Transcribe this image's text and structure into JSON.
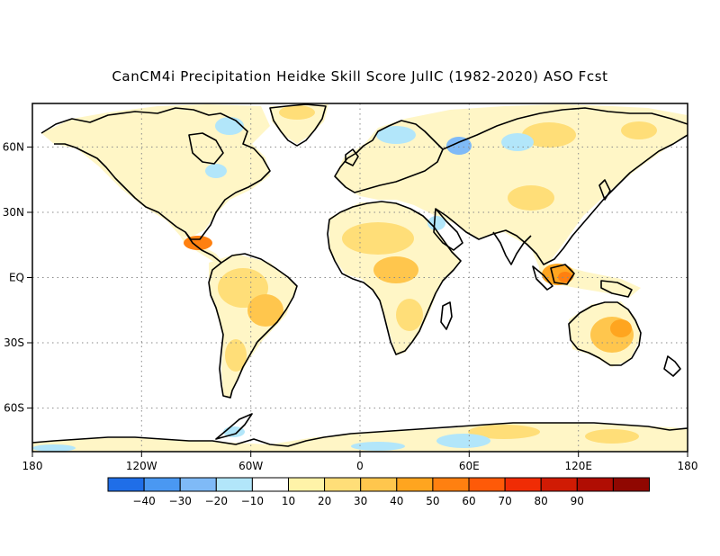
{
  "title": "CanCM4i Precipitation Heidke Skill Score JulIC (1982-2020) ASO Fcst",
  "map": {
    "x_ticks": [
      "180",
      "120W",
      "60W",
      "0",
      "60E",
      "120E",
      "180"
    ],
    "y_ticks": [
      "60N",
      "30N",
      "EQ",
      "30S",
      "60S"
    ],
    "lon_range": [
      -180,
      180
    ],
    "lat_range": [
      -80,
      80
    ],
    "grid": "dotted"
  },
  "colorbar": {
    "colors": [
      "#1f6ee8",
      "#4a98f2",
      "#7fbaf7",
      "#b2e6fa",
      "#ffffff",
      "#fff3a8",
      "#ffde78",
      "#ffc64d",
      "#ffa51f",
      "#ff8010",
      "#fe5a08",
      "#f02c05",
      "#d01b04",
      "#b00d03",
      "#900701"
    ],
    "labels": [
      "-40",
      "-30",
      "-20",
      "-10",
      "10",
      "20",
      "30",
      "40",
      "50",
      "60",
      "70",
      "80",
      "90"
    ]
  }
}
